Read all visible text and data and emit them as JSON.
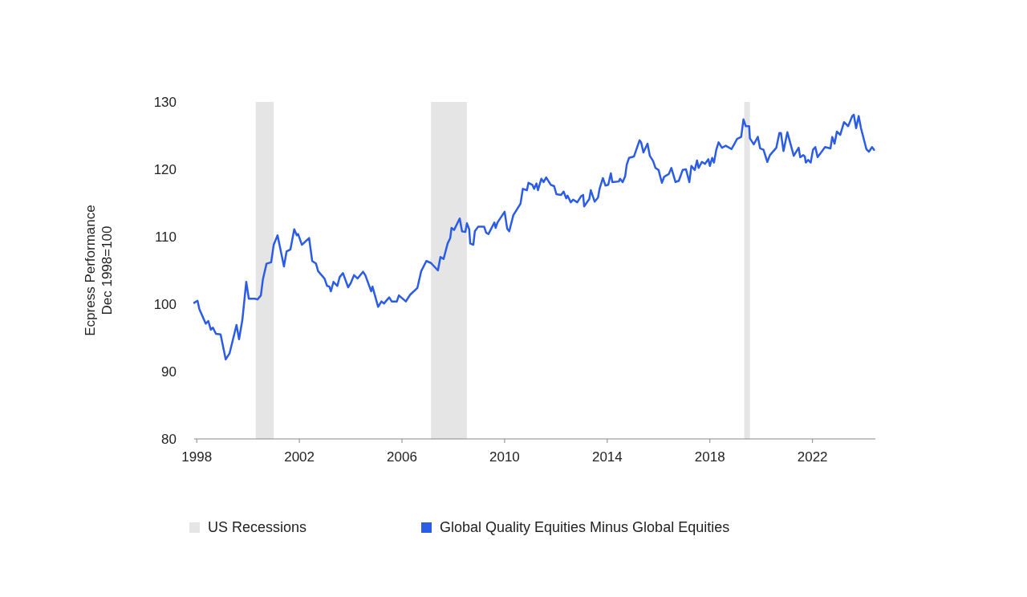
{
  "chart_data": {
    "type": "line",
    "ylabel": "Ecpress Performance\nDec 1998=100",
    "xlim": [
      1997.9,
      2024.45
    ],
    "xticks": [
      1998,
      2002,
      2006,
      2010,
      2014,
      2018,
      2022
    ],
    "ylim": [
      80,
      130
    ],
    "yticks": [
      80,
      90,
      100,
      110,
      120,
      130
    ],
    "grid": false,
    "legend": "bottom",
    "line_style": "solid",
    "marker": "none",
    "bands": [
      {
        "axis": "x",
        "from": 2000.3,
        "to": 2001.0,
        "label": "US Recessions",
        "color": "#e5e5e5"
      },
      {
        "axis": "x",
        "from": 2007.13,
        "to": 2008.53,
        "color": "#e5e5e5"
      },
      {
        "axis": "x",
        "from": 2019.34,
        "to": 2019.56,
        "color": "#e5e5e5"
      }
    ],
    "series": [
      {
        "name": "Global Quality Equities Minus Global Equities",
        "color": "#2b5ce6",
        "x": [
          1997.9,
          1998.03,
          1998.1,
          1998.35,
          1998.45,
          1998.55,
          1998.63,
          1998.75,
          1998.93,
          1999.13,
          1999.28,
          1999.55,
          1999.65,
          1999.78,
          1999.93,
          2000.03,
          2000.27,
          2000.37,
          2000.5,
          2000.58,
          2000.72,
          2000.9,
          2001.0,
          2001.15,
          2001.4,
          2001.5,
          2001.65,
          2001.8,
          2001.9,
          2001.95,
          2002.1,
          2002.38,
          2002.5,
          2002.65,
          2002.73,
          2002.98,
          2003.08,
          2003.17,
          2003.23,
          2003.33,
          2003.48,
          2003.57,
          2003.7,
          2003.9,
          2004.0,
          2004.13,
          2004.27,
          2004.48,
          2004.57,
          2004.8,
          2004.85,
          2005.07,
          2005.2,
          2005.3,
          2005.5,
          2005.6,
          2005.8,
          2005.88,
          2006.15,
          2006.32,
          2006.6,
          2006.75,
          2006.95,
          2007.13,
          2007.4,
          2007.5,
          2007.62,
          2007.78,
          2007.88,
          2007.93,
          2008.03,
          2008.25,
          2008.34,
          2008.47,
          2008.53,
          2008.62,
          2008.66,
          2008.78,
          2008.84,
          2008.97,
          2009.2,
          2009.28,
          2009.37,
          2009.6,
          2009.65,
          2009.72,
          2010.0,
          2010.1,
          2010.18,
          2010.34,
          2010.62,
          2010.71,
          2010.87,
          2010.93,
          2011.08,
          2011.15,
          2011.24,
          2011.3,
          2011.43,
          2011.52,
          2011.62,
          2011.8,
          2011.93,
          2012.02,
          2012.2,
          2012.3,
          2012.4,
          2012.45,
          2012.58,
          2012.67,
          2012.83,
          2012.98,
          2013.06,
          2013.1,
          2013.3,
          2013.36,
          2013.51,
          2013.64,
          2013.7,
          2013.83,
          2013.93,
          2014.04,
          2014.14,
          2014.2,
          2014.45,
          2014.5,
          2014.6,
          2014.7,
          2014.76,
          2014.85,
          2015.04,
          2015.26,
          2015.32,
          2015.41,
          2015.57,
          2015.66,
          2015.79,
          2015.88,
          2016.0,
          2016.13,
          2016.22,
          2016.4,
          2016.5,
          2016.66,
          2016.79,
          2016.94,
          2017.07,
          2017.2,
          2017.28,
          2017.41,
          2017.5,
          2017.56,
          2017.69,
          2017.81,
          2017.94,
          2018.0,
          2018.09,
          2018.16,
          2018.25,
          2018.34,
          2018.47,
          2018.62,
          2018.84,
          2018.93,
          2019.06,
          2019.22,
          2019.31,
          2019.4,
          2019.53,
          2019.56,
          2019.71,
          2019.87,
          2019.96,
          2020.09,
          2020.24,
          2020.34,
          2020.59,
          2020.71,
          2020.77,
          2020.87,
          2021.02,
          2021.27,
          2021.46,
          2021.52,
          2021.64,
          2021.7,
          2021.74,
          2021.83,
          2021.93,
          2022.02,
          2022.11,
          2022.2,
          2022.49,
          2022.7,
          2022.77,
          2022.86,
          2022.95,
          2023.08,
          2023.23,
          2023.39,
          2023.55,
          2023.61,
          2023.7,
          2023.8,
          2023.89,
          2024.1,
          2024.2,
          2024.32,
          2024.4
        ],
        "values": [
          100.2,
          100.5,
          99.3,
          97.1,
          97.5,
          96.2,
          96.5,
          95.6,
          95.5,
          91.8,
          92.7,
          96.9,
          94.8,
          97.7,
          103.3,
          100.8,
          100.8,
          100.7,
          101.3,
          103.7,
          106.0,
          106.2,
          108.8,
          110.2,
          105.6,
          107.8,
          108.1,
          111.1,
          110.2,
          110.4,
          108.8,
          109.8,
          106.4,
          106.0,
          104.9,
          103.8,
          102.7,
          102.6,
          101.9,
          103.3,
          102.7,
          104.0,
          104.6,
          102.5,
          103.1,
          104.3,
          103.8,
          104.8,
          104.3,
          101.9,
          102.6,
          99.6,
          100.4,
          100.1,
          101.0,
          100.4,
          100.4,
          101.3,
          100.4,
          101.4,
          102.4,
          104.9,
          106.4,
          106.1,
          105.0,
          107.0,
          106.7,
          109.0,
          109.8,
          111.3,
          111.0,
          112.7,
          110.8,
          110.7,
          112.0,
          111.1,
          109.0,
          108.8,
          110.8,
          111.5,
          111.5,
          110.6,
          110.4,
          112.1,
          111.3,
          112.1,
          113.7,
          111.2,
          110.8,
          113.2,
          114.9,
          117.1,
          116.9,
          118.0,
          117.7,
          117.1,
          117.9,
          116.9,
          118.6,
          118.1,
          118.8,
          117.7,
          117.5,
          116.3,
          116.2,
          116.7,
          115.7,
          116.1,
          115.1,
          115.5,
          115.1,
          116.0,
          116.2,
          114.5,
          115.6,
          116.9,
          115.2,
          115.8,
          117.1,
          118.7,
          117.6,
          117.7,
          119.4,
          118.1,
          118.2,
          118.6,
          118.1,
          119.0,
          120.7,
          121.7,
          121.9,
          124.3,
          124.0,
          122.5,
          123.8,
          122.0,
          121.2,
          120.2,
          119.9,
          118.0,
          118.9,
          119.3,
          120.2,
          118.1,
          118.3,
          119.9,
          120.0,
          118.1,
          120.5,
          119.9,
          121.3,
          120.2,
          121.1,
          120.8,
          121.5,
          120.5,
          121.7,
          121.0,
          122.9,
          124.0,
          123.2,
          123.5,
          123.0,
          123.6,
          124.5,
          124.8,
          127.4,
          126.4,
          126.4,
          124.6,
          123.7,
          124.8,
          123.1,
          122.9,
          121.1,
          122.1,
          123.2,
          125.4,
          125.4,
          122.7,
          125.5,
          122.0,
          123.2,
          121.8,
          122.1,
          121.9,
          121.0,
          121.4,
          121.0,
          122.9,
          123.3,
          121.8,
          123.3,
          123.1,
          124.8,
          123.8,
          125.6,
          125.1,
          127.0,
          126.4,
          127.9,
          128.1,
          126.1,
          127.9,
          126.1,
          123.0,
          122.6,
          123.3,
          122.9
        ]
      }
    ]
  }
}
